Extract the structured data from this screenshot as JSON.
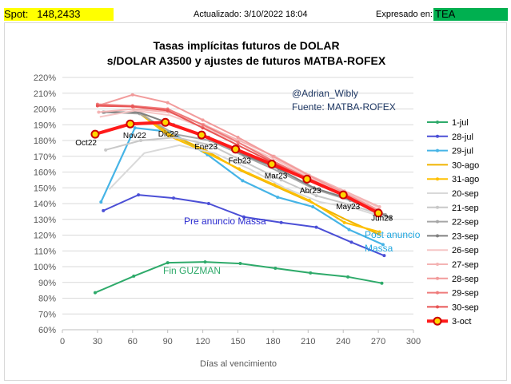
{
  "header": {
    "spot_label": "Spot:",
    "spot_value": "148,2433",
    "updated_label": "Actualizado:",
    "updated_value": "3/10/2022 18:04",
    "expressed_label": "Expresado en:",
    "expressed_value": "TEA",
    "spot_bg": "#ffff00",
    "tea_bg": "#00b050"
  },
  "chart_data": {
    "type": "line",
    "title": "Tasas implícitas futuros de DOLAR",
    "subtitle": "s/DOLAR A3500 y ajustes de futuros MATBA-ROFEX",
    "xlabel": "Días al vencimiento",
    "ylabel": "",
    "xlim": [
      0,
      300
    ],
    "ylim": [
      0.6,
      2.2
    ],
    "xticks": [
      "0",
      "30",
      "60",
      "90",
      "120",
      "150",
      "180",
      "210",
      "240",
      "270",
      "300"
    ],
    "yticks": [
      "60%",
      "70%",
      "80%",
      "90%",
      "100%",
      "110%",
      "120%",
      "130%",
      "140%",
      "150%",
      "160%",
      "170%",
      "180%",
      "190%",
      "200%",
      "210%",
      "220%"
    ],
    "grid": "horizontal",
    "legend_position": "right",
    "annotations": {
      "author": "@Adrian_Wibly",
      "source": "Fuente: MATBA-ROFEX",
      "pre_massa": "Pre anuncio Massa",
      "post_massa_1": "Post anuncio",
      "post_massa_2": "Massa",
      "fin_guzman": "Fin GUZMAN"
    },
    "point_labels": [
      "Oct22",
      "Nov22",
      "Dic22",
      "Ene23",
      "Feb23",
      "Mar23",
      "Abr23",
      "May23",
      "Jun23"
    ],
    "series": [
      {
        "name": "1-jul",
        "color": "#2eaa6a",
        "marker": "dot",
        "values": [
          [
            28,
            0.835
          ],
          [
            61,
            0.94
          ],
          [
            90,
            1.025
          ],
          [
            122,
            1.03
          ],
          [
            152,
            1.02
          ],
          [
            182,
            0.99
          ],
          [
            212,
            0.96
          ],
          [
            244,
            0.935
          ],
          [
            273,
            0.895
          ]
        ]
      },
      {
        "name": "28-jul",
        "color": "#4b4fd6",
        "marker": "dot",
        "values": [
          [
            35,
            1.355
          ],
          [
            65,
            1.455
          ],
          [
            95,
            1.435
          ],
          [
            125,
            1.4
          ],
          [
            155,
            1.315
          ],
          [
            187,
            1.28
          ],
          [
            217,
            1.25
          ],
          [
            247,
            1.155
          ],
          [
            275,
            1.07
          ]
        ]
      },
      {
        "name": "29-jul",
        "color": "#46b4e6",
        "marker": "dot",
        "values": [
          [
            33,
            1.41
          ],
          [
            62,
            1.88
          ],
          [
            92,
            1.855
          ],
          [
            124,
            1.71
          ],
          [
            154,
            1.545
          ],
          [
            184,
            1.44
          ],
          [
            214,
            1.38
          ],
          [
            245,
            1.235
          ],
          [
            274,
            1.14
          ]
        ]
      },
      {
        "name": "30-ago",
        "color": "#f0b400",
        "marker": "none",
        "values": [
          [
            62,
            2.0
          ],
          [
            92,
            1.84
          ],
          [
            122,
            1.74
          ],
          [
            152,
            1.61
          ],
          [
            182,
            1.51
          ],
          [
            212,
            1.41
          ],
          [
            242,
            1.3
          ],
          [
            272,
            1.2
          ]
        ]
      },
      {
        "name": "31-ago",
        "color": "#ffc000",
        "marker": "dot",
        "values": [
          [
            61,
            2.0
          ],
          [
            91,
            1.83
          ],
          [
            121,
            1.73
          ],
          [
            151,
            1.62
          ],
          [
            181,
            1.52
          ],
          [
            211,
            1.42
          ],
          [
            241,
            1.28
          ],
          [
            271,
            1.22
          ]
        ]
      },
      {
        "name": "20-sep",
        "color": "#d9d9d9",
        "marker": "none",
        "values": [
          [
            40,
            1.49
          ],
          [
            70,
            1.72
          ],
          [
            100,
            1.77
          ],
          [
            130,
            1.72
          ],
          [
            160,
            1.62
          ],
          [
            190,
            1.5
          ],
          [
            220,
            1.41
          ],
          [
            250,
            1.37
          ],
          [
            280,
            1.3
          ]
        ]
      },
      {
        "name": "21-sep",
        "color": "#c8c8c8",
        "marker": "dot",
        "values": [
          [
            37,
            1.74
          ],
          [
            67,
            1.8
          ],
          [
            97,
            1.82
          ],
          [
            127,
            1.77
          ],
          [
            157,
            1.66
          ],
          [
            187,
            1.55
          ],
          [
            217,
            1.45
          ],
          [
            247,
            1.39
          ],
          [
            277,
            1.32
          ]
        ]
      },
      {
        "name": "22-sep",
        "color": "#a6a6a6",
        "marker": "dot",
        "values": [
          [
            36,
            1.98
          ],
          [
            66,
            1.97
          ],
          [
            96,
            1.84
          ],
          [
            126,
            1.8
          ],
          [
            156,
            1.7
          ],
          [
            186,
            1.6
          ],
          [
            216,
            1.49
          ],
          [
            246,
            1.42
          ],
          [
            276,
            1.33
          ]
        ]
      },
      {
        "name": "23-sep",
        "color": "#808080",
        "marker": "dot",
        "values": [
          [
            35,
            1.98
          ],
          [
            65,
            1.98
          ],
          [
            95,
            1.9
          ],
          [
            125,
            1.82
          ],
          [
            155,
            1.71
          ],
          [
            185,
            1.62
          ],
          [
            215,
            1.5
          ],
          [
            245,
            1.43
          ],
          [
            280,
            1.31
          ]
        ]
      },
      {
        "name": "26-sep",
        "color": "#f6c6c6",
        "marker": "none",
        "values": [
          [
            32,
            1.95
          ],
          [
            62,
            1.99
          ],
          [
            92,
            1.96
          ],
          [
            122,
            1.88
          ],
          [
            152,
            1.78
          ],
          [
            182,
            1.68
          ],
          [
            212,
            1.56
          ],
          [
            242,
            1.47
          ],
          [
            272,
            1.37
          ]
        ]
      },
      {
        "name": "27-sep",
        "color": "#f4b4b4",
        "marker": "dot",
        "values": [
          [
            31,
            1.98
          ],
          [
            61,
            2.0
          ],
          [
            91,
            1.98
          ],
          [
            121,
            1.9
          ],
          [
            151,
            1.8
          ],
          [
            181,
            1.7
          ],
          [
            211,
            1.58
          ],
          [
            241,
            1.48
          ],
          [
            271,
            1.38
          ]
        ]
      },
      {
        "name": "28-sep",
        "color": "#f29b9b",
        "marker": "dot",
        "values": [
          [
            30,
            2.02
          ],
          [
            60,
            2.09
          ],
          [
            90,
            2.04
          ],
          [
            120,
            1.93
          ],
          [
            150,
            1.82
          ],
          [
            180,
            1.7
          ],
          [
            210,
            1.58
          ],
          [
            240,
            1.47
          ],
          [
            270,
            1.36
          ]
        ]
      },
      {
        "name": "29-sep",
        "color": "#ef7b7b",
        "marker": "dot",
        "values": [
          [
            30,
            2.03
          ],
          [
            60,
            2.02
          ],
          [
            90,
            2.0
          ],
          [
            120,
            1.9
          ],
          [
            150,
            1.79
          ],
          [
            180,
            1.67
          ],
          [
            210,
            1.56
          ],
          [
            240,
            1.46
          ],
          [
            270,
            1.35
          ]
        ]
      },
      {
        "name": "30-sep",
        "color": "#e85555",
        "marker": "dot",
        "values": [
          [
            30,
            2.02
          ],
          [
            60,
            2.015
          ],
          [
            90,
            1.99
          ],
          [
            120,
            1.88
          ],
          [
            150,
            1.77
          ],
          [
            180,
            1.66
          ],
          [
            210,
            1.55
          ],
          [
            240,
            1.45
          ],
          [
            270,
            1.34
          ]
        ]
      },
      {
        "name": "3-oct",
        "color": "#ff1a1a",
        "marker": "big",
        "values": [
          [
            28,
            1.84
          ],
          [
            58,
            1.905
          ],
          [
            88,
            1.915
          ],
          [
            119,
            1.835
          ],
          [
            148,
            1.745
          ],
          [
            179,
            1.65
          ],
          [
            209,
            1.555
          ],
          [
            240,
            1.455
          ],
          [
            270,
            1.34
          ]
        ]
      }
    ]
  }
}
